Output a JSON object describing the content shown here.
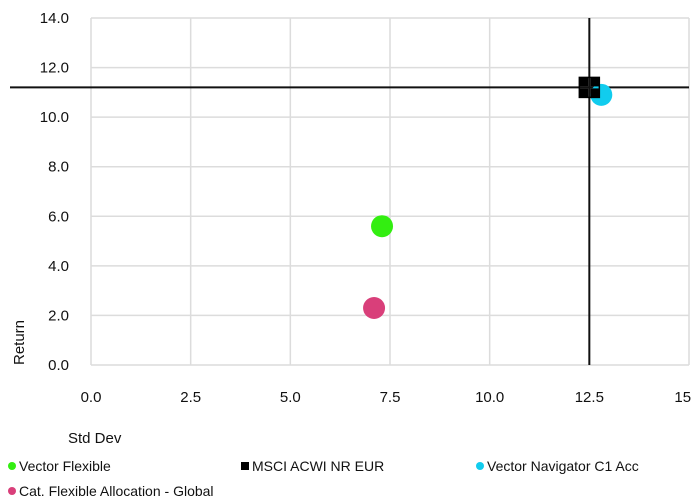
{
  "chart_data": {
    "type": "scatter",
    "xlabel": "Std Dev",
    "ylabel": "Return",
    "xlim": [
      0,
      15
    ],
    "ylim": [
      0,
      14
    ],
    "xticks": [
      0,
      2.5,
      5,
      7.5,
      10,
      12.5,
      15
    ],
    "yticks": [
      0,
      2,
      4,
      6,
      8,
      10,
      12,
      14
    ],
    "xtick_labels": [
      "0.0",
      "2.5",
      "5.0",
      "7.5",
      "10.0",
      "12.5",
      "15.0"
    ],
    "ytick_labels": [
      "0.0",
      "2.0",
      "4.0",
      "6.0",
      "8.0",
      "10.0",
      "12.0",
      "14.0"
    ],
    "grid": true,
    "legend_position": "bottom",
    "crosshair": {
      "x": 12.5,
      "y": 11.2
    },
    "series": [
      {
        "name": "Vector Flexible",
        "x": 7.3,
        "y": 5.6,
        "color": "#33ee11",
        "marker": "circle"
      },
      {
        "name": "MSCI ACWI NR EUR",
        "x": 12.5,
        "y": 11.2,
        "color": "#000000",
        "marker": "square"
      },
      {
        "name": "Vector Navigator C1 Acc",
        "x": 12.8,
        "y": 10.9,
        "color": "#11ccee",
        "marker": "circle"
      },
      {
        "name": "Cat. Flexible Allocation - Global",
        "x": 7.1,
        "y": 2.3,
        "color": "#d93f7a",
        "marker": "circle"
      }
    ]
  }
}
